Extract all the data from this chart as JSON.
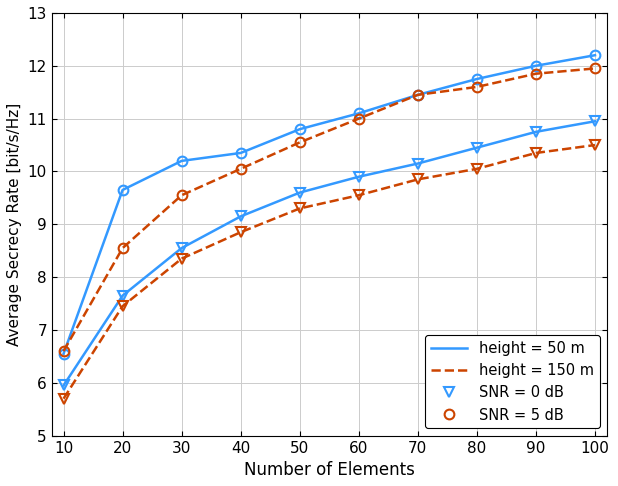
{
  "x": [
    10,
    20,
    30,
    40,
    50,
    60,
    70,
    80,
    90,
    100
  ],
  "h50_snr0": [
    5.95,
    7.65,
    8.55,
    9.15,
    9.6,
    9.9,
    10.15,
    10.45,
    10.75,
    10.95
  ],
  "h50_snr5": [
    6.55,
    9.65,
    10.2,
    10.35,
    10.8,
    11.1,
    11.45,
    11.75,
    12.0,
    12.2
  ],
  "h150_snr0": [
    5.7,
    7.45,
    8.35,
    8.85,
    9.3,
    9.55,
    9.85,
    10.05,
    10.35,
    10.5
  ],
  "h150_snr5": [
    6.6,
    8.55,
    9.55,
    10.05,
    10.55,
    11.0,
    11.45,
    11.6,
    11.85,
    11.95
  ],
  "color_blue": "#3399FF",
  "color_orange": "#CC4400",
  "xlabel": "Number of Elements",
  "ylabel": "Average Secrecy Rate [bit/s/Hz]",
  "xlim": [
    8,
    102
  ],
  "ylim": [
    5,
    13
  ],
  "yticks": [
    5,
    6,
    7,
    8,
    9,
    10,
    11,
    12,
    13
  ],
  "xticks": [
    10,
    20,
    30,
    40,
    50,
    60,
    70,
    80,
    90,
    100
  ],
  "legend_labels": [
    "height = 50 m",
    "height = 150 m",
    "SNR = 0 dB",
    "SNR = 5 dB"
  ],
  "bg_color": "#FFFFFF",
  "grid_color": "#CCCCCC"
}
